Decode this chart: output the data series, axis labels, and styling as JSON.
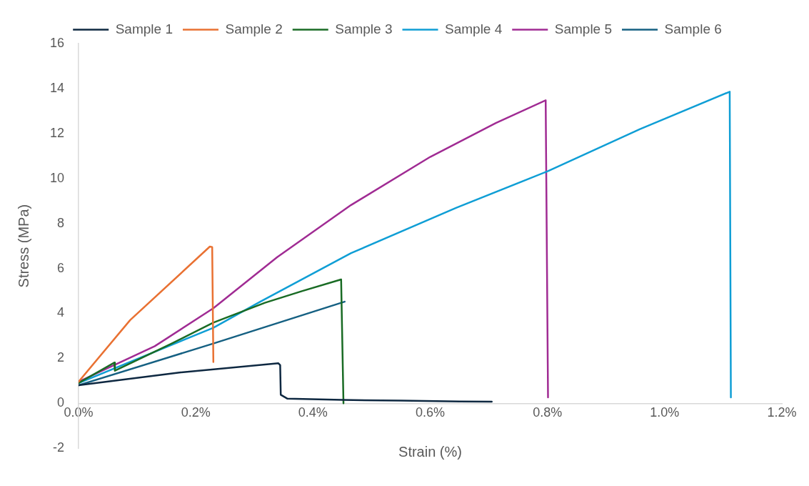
{
  "chart_data": {
    "type": "line",
    "xlabel": "Strain (%)",
    "ylabel": "Stress (MPa)",
    "xlim": [
      0,
      1.2
    ],
    "ylim": [
      -2,
      16
    ],
    "xticks": [
      {
        "value": 0,
        "label": "0.0%"
      },
      {
        "value": 0.2,
        "label": "0.2%"
      },
      {
        "value": 0.4,
        "label": "0.4%"
      },
      {
        "value": 0.6,
        "label": "0.6%"
      },
      {
        "value": 0.8,
        "label": "0.8%"
      },
      {
        "value": 1.0,
        "label": "1.0%"
      },
      {
        "value": 1.2,
        "label": "1.2%"
      }
    ],
    "yticks": [
      -2,
      0,
      2,
      4,
      6,
      8,
      10,
      12,
      14,
      16
    ],
    "grid": false,
    "legend": "top",
    "marker": "none",
    "line_style": "solid",
    "series": [
      {
        "name": "Sample 1",
        "color": "#0e2841",
        "x": [
          0,
          0.172,
          0.341,
          0.344,
          0.345,
          0.356,
          0.45,
          0.55,
          0.65,
          0.705
        ],
        "values": [
          0.8,
          1.37,
          1.78,
          1.7,
          0.38,
          0.21,
          0.15,
          0.12,
          0.08,
          0.07
        ]
      },
      {
        "name": "Sample 2",
        "color": "#e97132",
        "x": [
          0,
          0.088,
          0.224,
          0.228,
          0.23
        ],
        "values": [
          0.96,
          3.7,
          6.97,
          6.95,
          1.84
        ]
      },
      {
        "name": "Sample 3",
        "color": "#196b24",
        "x": [
          0,
          0.061,
          0.062,
          0.159,
          0.23,
          0.318,
          0.381,
          0.448,
          0.452
        ],
        "values": [
          0.9,
          1.81,
          1.45,
          2.66,
          3.59,
          4.47,
          4.99,
          5.51,
          0
        ]
      },
      {
        "name": "Sample 4",
        "color": "#0f9ed5",
        "x": [
          0,
          0.23,
          0.31,
          0.465,
          0.644,
          0.801,
          0.958,
          1.111,
          1.113
        ],
        "values": [
          0.9,
          3.36,
          4.52,
          6.68,
          8.69,
          10.33,
          12.2,
          13.86,
          0.26
        ]
      },
      {
        "name": "Sample 5",
        "color": "#a02b93",
        "x": [
          0,
          0.13,
          0.23,
          0.339,
          0.465,
          0.6,
          0.712,
          0.797,
          0.801
        ],
        "values": [
          0.96,
          2.54,
          4.23,
          6.5,
          8.82,
          10.96,
          12.47,
          13.48,
          0.26
        ]
      },
      {
        "name": "Sample 6",
        "color": "#156082",
        "x": [
          0,
          0.23,
          0.454
        ],
        "values": [
          0.8,
          2.66,
          4.52
        ]
      }
    ]
  }
}
